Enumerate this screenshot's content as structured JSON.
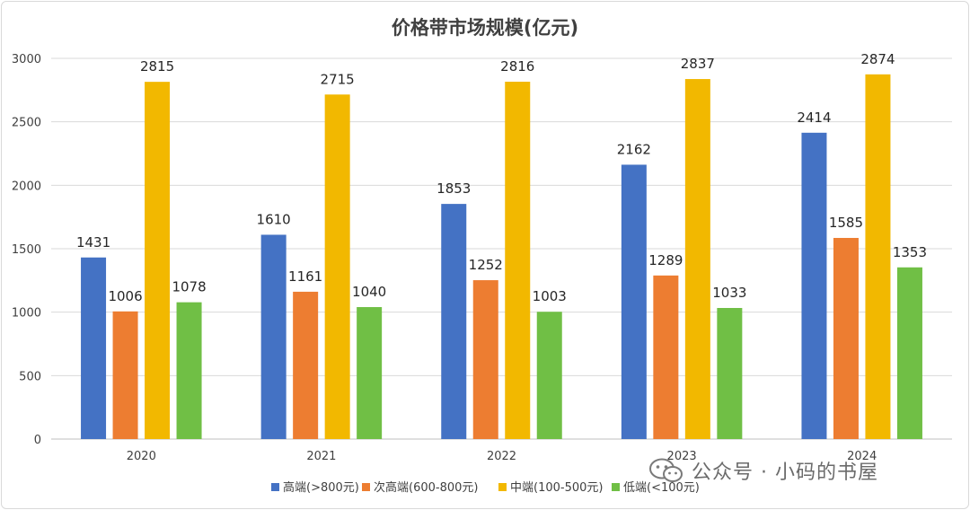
{
  "chart_data": {
    "type": "bar",
    "title": "价格带市场规模(亿元)",
    "categories": [
      "2020",
      "2021",
      "2022",
      "2023",
      "2024"
    ],
    "series": [
      {
        "name": "高端(>800元)",
        "color": "#4472C4",
        "values": [
          1431,
          1610,
          1853,
          2162,
          2414
        ]
      },
      {
        "name": "次高端(600-800元)",
        "color": "#ED7D31",
        "values": [
          1006,
          1161,
          1252,
          1289,
          1585
        ]
      },
      {
        "name": "中端(100-500元)",
        "color": "#F2B800",
        "values": [
          2815,
          2715,
          2816,
          2837,
          2874
        ]
      },
      {
        "name": "低端(<100元)",
        "color": "#70BF45",
        "values": [
          1078,
          1040,
          1003,
          1033,
          1353
        ]
      }
    ],
    "yticks": [
      0,
      500,
      1000,
      1500,
      2000,
      2500,
      3000
    ],
    "ylim": [
      0,
      3000
    ],
    "xlabel": "",
    "ylabel": "",
    "grid": true,
    "legend_position": "bottom",
    "data_labels": true
  },
  "watermark": {
    "text": "公众号 · 小码的书屋",
    "icon": "wechat-icon"
  }
}
